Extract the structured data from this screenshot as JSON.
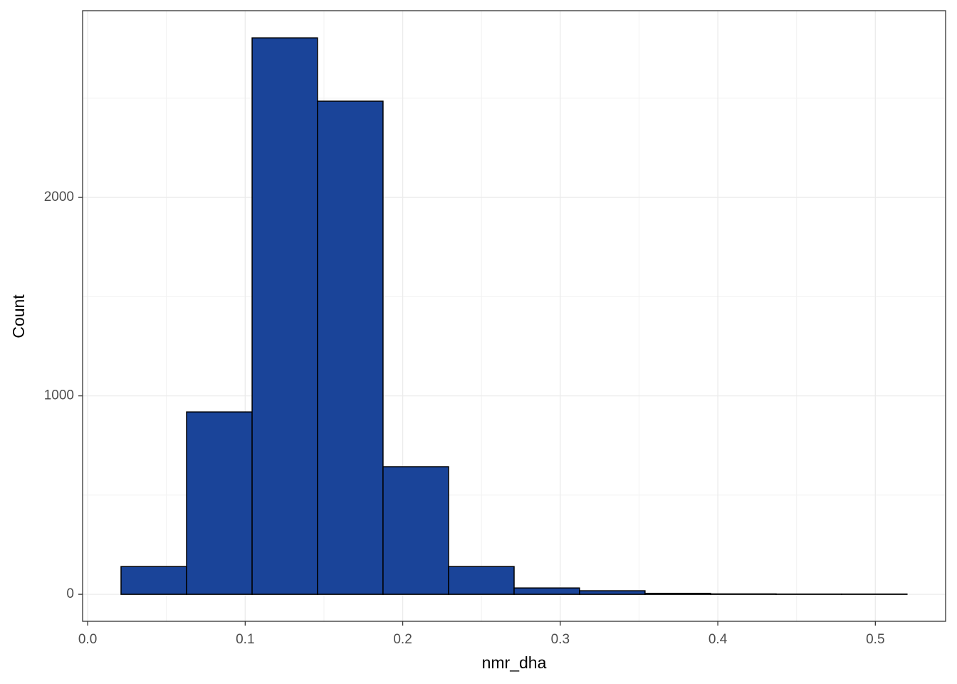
{
  "chart_data": {
    "type": "histogram",
    "x_label": "nmr_dha",
    "y_label": "Count",
    "bins": [
      0.0212,
      0.0628,
      0.1044,
      0.1459,
      0.1875,
      0.2291,
      0.2707,
      0.3122,
      0.3538,
      0.3954,
      0.437,
      0.4785,
      0.5201
    ],
    "values": [
      140,
      919,
      2804,
      2485,
      643,
      140,
      32,
      18,
      5,
      2,
      1,
      1
    ],
    "color": "#1a4499",
    "edge_color": "#000000",
    "xlim": [
      -0.0032,
      0.5446
    ],
    "ylim": [
      -136,
      2941
    ],
    "xticks": [
      {
        "value": 0,
        "label": "0.0"
      },
      0.1,
      0.2,
      0.3,
      0.4,
      0.5
    ],
    "yticks": [
      0,
      1000,
      2000
    ],
    "grid": true
  }
}
